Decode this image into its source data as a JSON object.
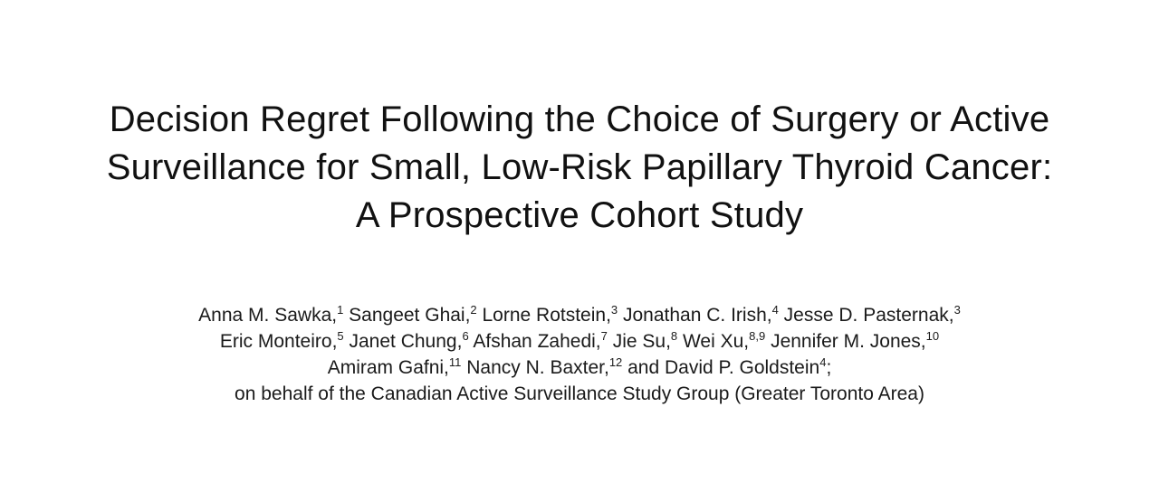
{
  "paper": {
    "title_lines": [
      "Decision Regret Following the Choice of Surgery or Active",
      "Surveillance for Small, Low-Risk Papillary Thyroid Cancer:",
      "A Prospective Cohort Study"
    ],
    "author_lines": [
      [
        {
          "name": "Anna M. Sawka,",
          "aff": "1"
        },
        {
          "name": "Sangeet Ghai,",
          "aff": "2"
        },
        {
          "name": "Lorne Rotstein,",
          "aff": "3"
        },
        {
          "name": "Jonathan C. Irish,",
          "aff": "4"
        },
        {
          "name": "Jesse D. Pasternak,",
          "aff": "3"
        }
      ],
      [
        {
          "name": "Eric Monteiro,",
          "aff": "5"
        },
        {
          "name": "Janet Chung,",
          "aff": "6"
        },
        {
          "name": "Afshan Zahedi,",
          "aff": "7"
        },
        {
          "name": "Jie Su,",
          "aff": "8"
        },
        {
          "name": "Wei Xu,",
          "aff": "8,9"
        },
        {
          "name": "Jennifer M. Jones,",
          "aff": "10"
        }
      ],
      [
        {
          "name": "Amiram Gafni,",
          "aff": "11"
        },
        {
          "name": "Nancy N. Baxter,",
          "aff": "12"
        },
        {
          "name": "and David P. Goldstein",
          "aff": "4",
          "suffix": ";"
        }
      ]
    ],
    "group_line": "on behalf of the Canadian Active Surveillance Study Group (Greater Toronto Area)"
  }
}
